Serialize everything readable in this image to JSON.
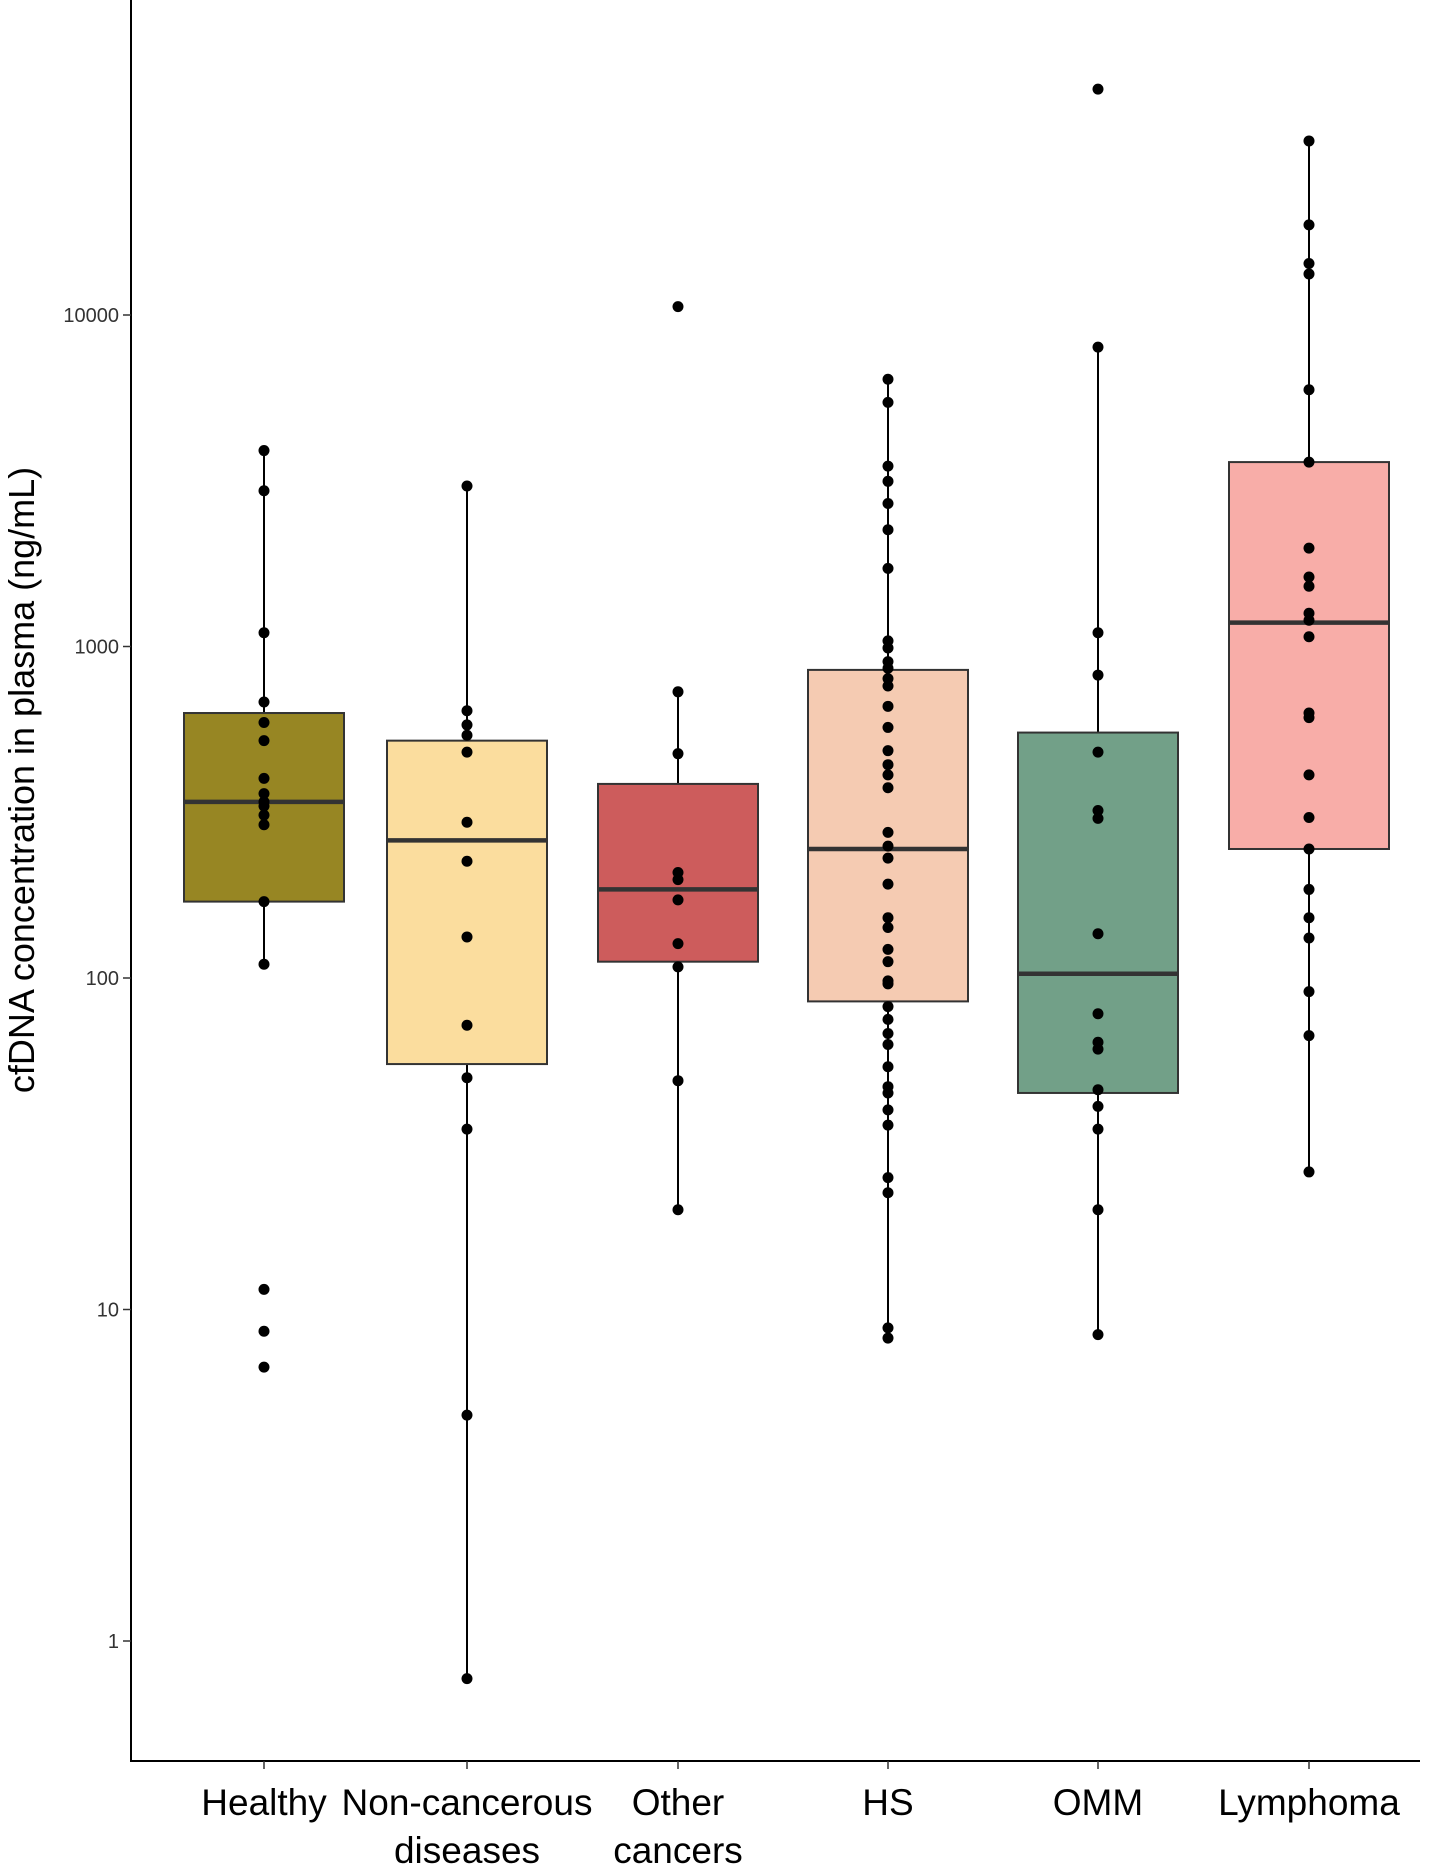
{
  "chart_data": {
    "type": "box",
    "title": "",
    "xlabel": "",
    "ylabel": "cfDNA concentration in plasma (ng/mL)",
    "yscale": "log10",
    "ylim": [
      0.45,
      70000
    ],
    "yticks": [
      1,
      10,
      100,
      1000,
      10000
    ],
    "ytick_labels": [
      "1",
      "10",
      "100",
      "1000",
      "10000"
    ],
    "grid": false,
    "legend": "none",
    "categories": [
      {
        "lines": [
          "Healthy"
        ]
      },
      {
        "lines": [
          "Non-cancerous",
          "diseases"
        ]
      },
      {
        "lines": [
          "Other",
          "cancers"
        ]
      },
      {
        "lines": [
          "HS"
        ]
      },
      {
        "lines": [
          "OMM"
        ]
      },
      {
        "lines": [
          "Lymphoma"
        ]
      }
    ],
    "boxes": [
      {
        "q1": 170,
        "median": 340,
        "q3": 630,
        "whisker_low": 110,
        "whisker_high": 3900,
        "color": "#978623",
        "points": [
          3900,
          2950,
          1100,
          680,
          590,
          520,
          400,
          360,
          340,
          330,
          310,
          290,
          170,
          110,
          11.5,
          8.6,
          6.7
        ]
      },
      {
        "q1": 55,
        "median": 260,
        "q3": 520,
        "whisker_low": 0.77,
        "whisker_high": 3050,
        "color": "#FBDD9E",
        "points": [
          3050,
          640,
          580,
          540,
          480,
          295,
          225,
          133,
          72,
          50,
          35,
          4.8,
          0.77
        ]
      },
      {
        "q1": 112,
        "median": 185,
        "q3": 385,
        "whisker_low": 20,
        "whisker_high": 730,
        "color": "#CD5C5C",
        "points": [
          10600,
          730,
          475,
          208,
          198,
          172,
          127,
          108,
          49,
          20
        ]
      },
      {
        "q1": 85,
        "median": 245,
        "q3": 850,
        "whisker_low": 8.2,
        "whisker_high": 6400,
        "color": "#F5CBB2",
        "points": [
          6400,
          5450,
          3500,
          3150,
          2700,
          2250,
          1720,
          1040,
          990,
          900,
          860,
          800,
          760,
          660,
          570,
          485,
          440,
          410,
          375,
          275,
          250,
          230,
          192,
          152,
          142,
          122,
          112,
          98,
          96,
          82,
          75,
          68,
          63,
          54,
          47,
          45,
          40,
          36,
          25,
          22.5,
          8.8,
          8.2
        ]
      },
      {
        "q1": 45,
        "median": 103,
        "q3": 550,
        "whisker_low": 8.4,
        "whisker_high": 8000,
        "color": "#72A088",
        "points": [
          48000,
          8000,
          1100,
          820,
          480,
          320,
          303,
          136,
          78,
          64,
          61,
          46,
          41,
          35,
          20,
          8.4
        ]
      },
      {
        "q1": 245,
        "median": 1180,
        "q3": 3600,
        "whisker_low": 26,
        "whisker_high": 33500,
        "color": "#F8ADA8",
        "points": [
          33500,
          18700,
          14300,
          13300,
          5950,
          3600,
          1980,
          1620,
          1520,
          1260,
          1200,
          1070,
          630,
          610,
          410,
          305,
          245,
          185,
          152,
          132,
          91,
          67,
          26
        ]
      }
    ]
  }
}
